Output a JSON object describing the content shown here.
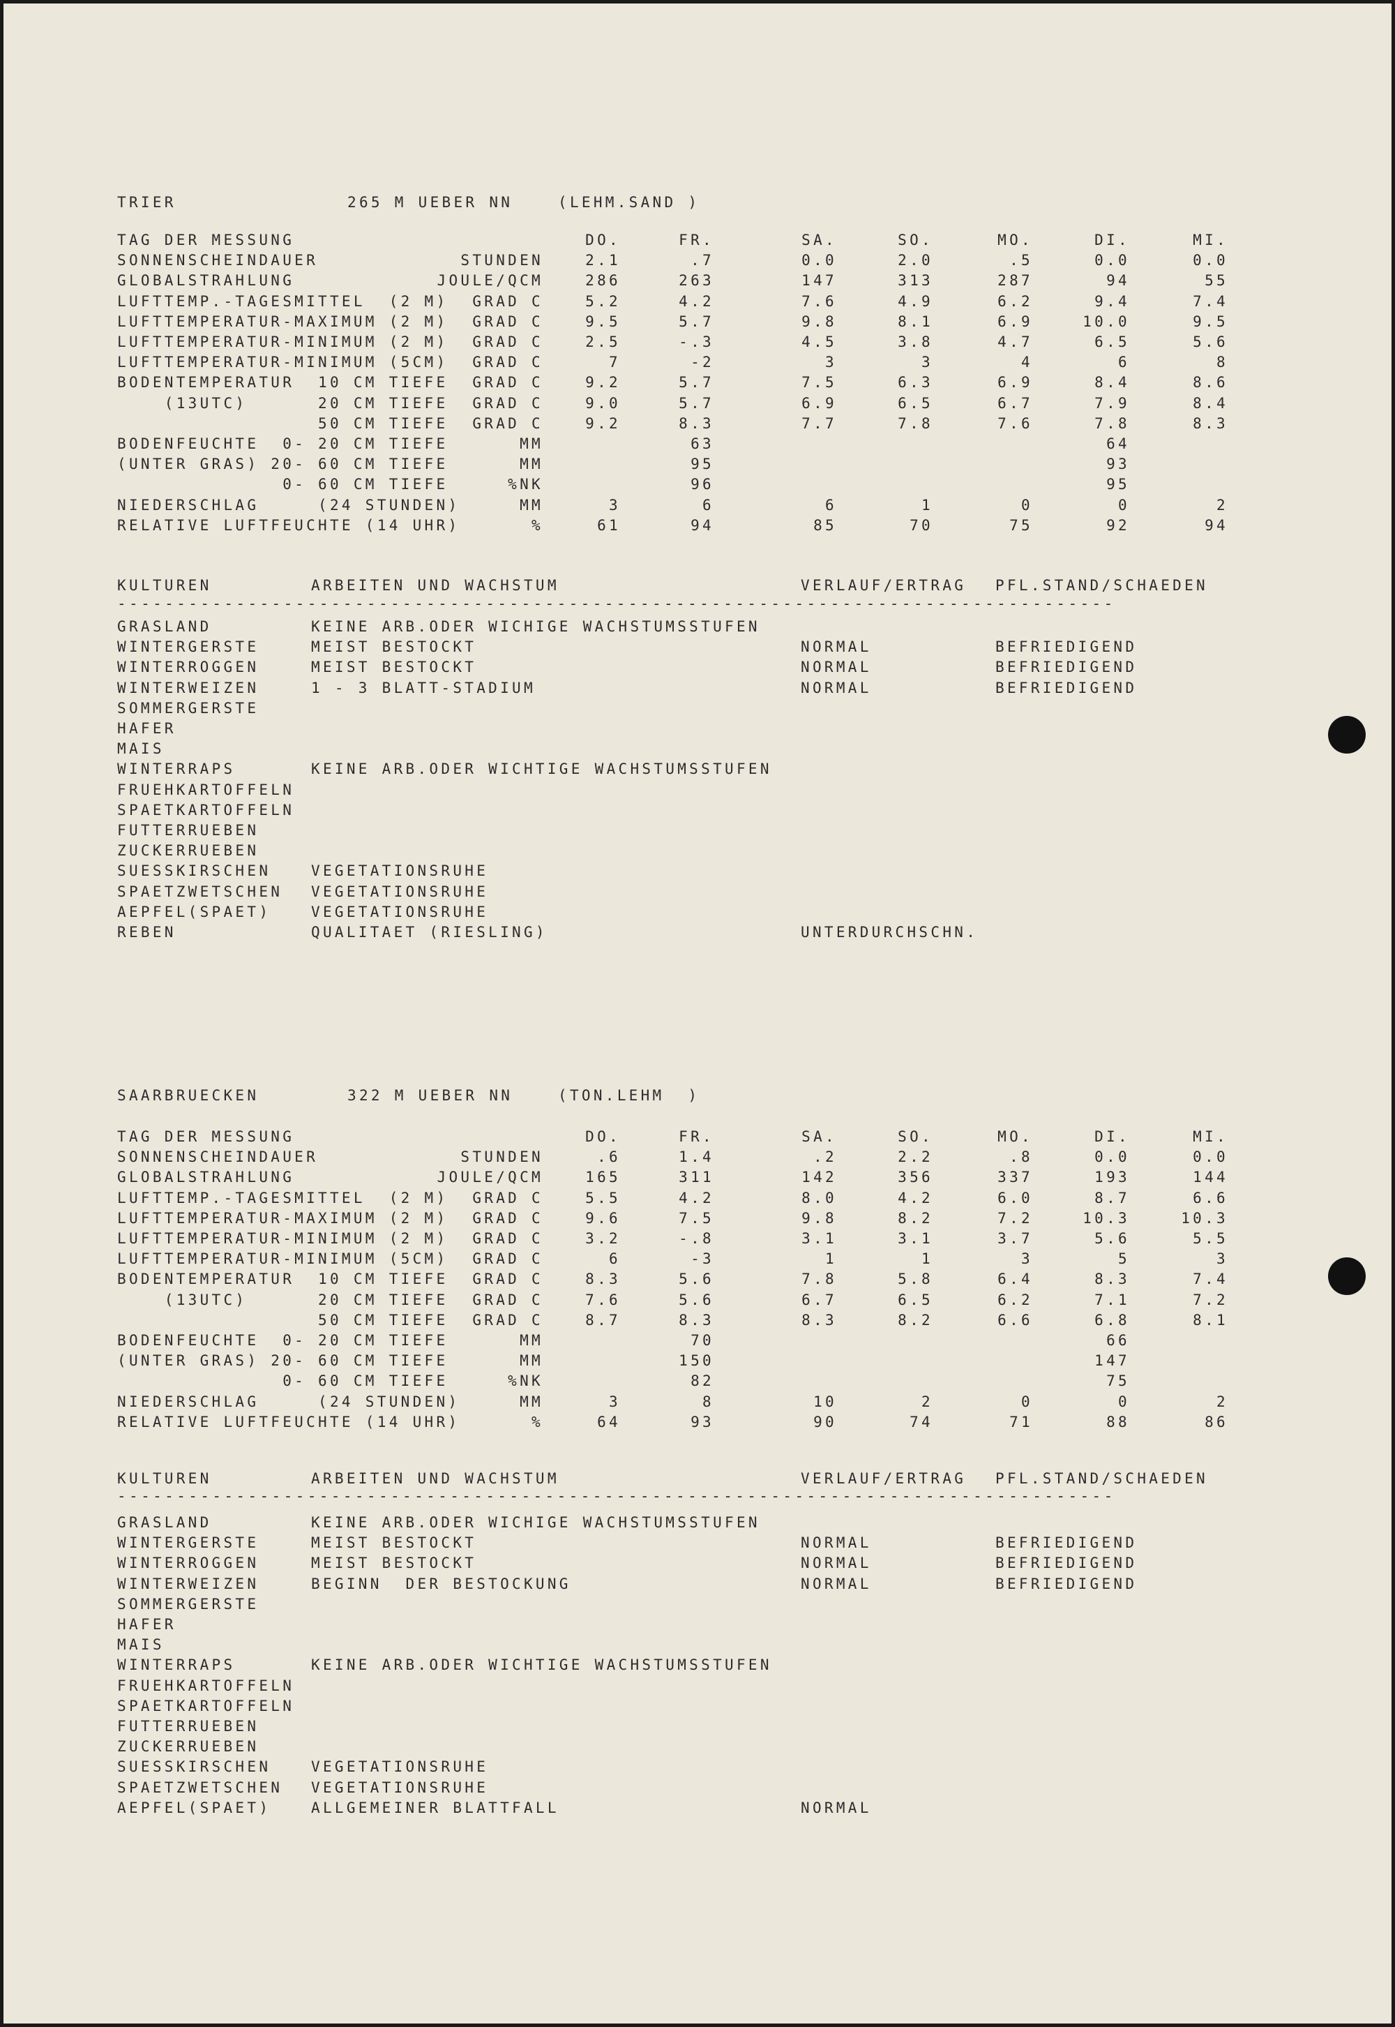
{
  "days": [
    "DO.",
    "FR.",
    "SA.",
    "SO.",
    "MO.",
    "DI.",
    "MI."
  ],
  "day_header_label": "TAG DER MESSUNG",
  "crops_header": {
    "kulturen": "KULTUREN",
    "arbeiten": "ARBEITEN UND WACHSTUM",
    "verlauf": "VERLAUF/ERTRAG",
    "stand": "PFL.STAND/SCHAEDEN"
  },
  "stations": [
    {
      "name": "TRIER",
      "altitude": "265 M UEBER NN",
      "soil": "(LEHM.SAND )",
      "rows": [
        {
          "label": "SONNENSCHEINDAUER",
          "unit": "STUNDEN",
          "values": [
            "2.1",
            ".7",
            "0.0",
            "2.0",
            ".5",
            "0.0",
            "0.0"
          ]
        },
        {
          "label": "GLOBALSTRAHLUNG",
          "unit": "JOULE/QCM",
          "values": [
            "286",
            "263",
            "147",
            "313",
            "287",
            "94",
            "55"
          ]
        },
        {
          "label": "LUFTTEMP.-TAGESMITTEL  (2 M)",
          "unit": "GRAD C",
          "values": [
            "5.2",
            "4.2",
            "7.6",
            "4.9",
            "6.2",
            "9.4",
            "7.4"
          ]
        },
        {
          "label": "LUFTTEMPERATUR-MAXIMUM (2 M)",
          "unit": "GRAD C",
          "values": [
            "9.5",
            "5.7",
            "9.8",
            "8.1",
            "6.9",
            "10.0",
            "9.5"
          ]
        },
        {
          "label": "LUFTTEMPERATUR-MINIMUM (2 M)",
          "unit": "GRAD C",
          "values": [
            "2.5",
            "-.3",
            "4.5",
            "3.8",
            "4.7",
            "6.5",
            "5.6"
          ]
        },
        {
          "label": "LUFTTEMPERATUR-MINIMUM (5CM)",
          "unit": "GRAD C",
          "values": [
            "7",
            "-2",
            "3",
            "3",
            "4",
            "6",
            "8"
          ]
        },
        {
          "label": "BODENTEMPERATUR  10 CM TIEFE",
          "unit": "GRAD C",
          "values": [
            "9.2",
            "5.7",
            "7.5",
            "6.3",
            "6.9",
            "8.4",
            "8.6"
          ]
        },
        {
          "label": "    (13UTC)      20 CM TIEFE",
          "unit": "GRAD C",
          "values": [
            "9.0",
            "5.7",
            "6.9",
            "6.5",
            "6.7",
            "7.9",
            "8.4"
          ]
        },
        {
          "label": "                 50 CM TIEFE",
          "unit": "GRAD C",
          "values": [
            "9.2",
            "8.3",
            "7.7",
            "7.8",
            "7.6",
            "7.8",
            "8.3"
          ]
        },
        {
          "label": "BODENFEUCHTE  0- 20 CM TIEFE",
          "unit": "MM",
          "values": [
            "",
            "63",
            "",
            "",
            "",
            "64",
            ""
          ]
        },
        {
          "label": "(UNTER GRAS) 20- 60 CM TIEFE",
          "unit": "MM",
          "values": [
            "",
            "95",
            "",
            "",
            "",
            "93",
            ""
          ]
        },
        {
          "label": "              0- 60 CM TIEFE",
          "unit": "%NK",
          "values": [
            "",
            "96",
            "",
            "",
            "",
            "95",
            ""
          ]
        },
        {
          "label": "NIEDERSCHLAG     (24 STUNDEN)",
          "unit": "MM",
          "values": [
            "3",
            "6",
            "6",
            "1",
            "0",
            "0",
            "2"
          ]
        },
        {
          "label": "RELATIVE LUFTFEUCHTE (14 UHR)",
          "unit": "%",
          "values": [
            "61",
            "94",
            "85",
            "70",
            "75",
            "92",
            "94"
          ]
        }
      ],
      "crops": [
        {
          "name": "GRASLAND",
          "work": "KEINE ARB.ODER WICHIGE WACHSTUMSSTUFEN",
          "verlauf": "",
          "stand": ""
        },
        {
          "name": "WINTERGERSTE",
          "work": "MEIST BESTOCKT",
          "verlauf": "NORMAL",
          "stand": "BEFRIEDIGEND"
        },
        {
          "name": "WINTERROGGEN",
          "work": "MEIST BESTOCKT",
          "verlauf": "NORMAL",
          "stand": "BEFRIEDIGEND"
        },
        {
          "name": "WINTERWEIZEN",
          "work": "1 - 3 BLATT-STADIUM",
          "verlauf": "NORMAL",
          "stand": "BEFRIEDIGEND"
        },
        {
          "name": "SOMMERGERSTE",
          "work": "",
          "verlauf": "",
          "stand": ""
        },
        {
          "name": "HAFER",
          "work": "",
          "verlauf": "",
          "stand": ""
        },
        {
          "name": "MAIS",
          "work": "",
          "verlauf": "",
          "stand": ""
        },
        {
          "name": "WINTERRAPS",
          "work": "KEINE ARB.ODER WICHTIGE WACHSTUMSSTUFEN",
          "verlauf": "",
          "stand": ""
        },
        {
          "name": "FRUEHKARTOFFELN",
          "work": "",
          "verlauf": "",
          "stand": ""
        },
        {
          "name": "SPAETKARTOFFELN",
          "work": "",
          "verlauf": "",
          "stand": ""
        },
        {
          "name": "FUTTERRUEBEN",
          "work": "",
          "verlauf": "",
          "stand": ""
        },
        {
          "name": "ZUCKERRUEBEN",
          "work": "",
          "verlauf": "",
          "stand": ""
        },
        {
          "name": "SUESSKIRSCHEN",
          "work": "VEGETATIONSRUHE",
          "verlauf": "",
          "stand": ""
        },
        {
          "name": "SPAETZWETSCHEN",
          "work": "VEGETATIONSRUHE",
          "verlauf": "",
          "stand": ""
        },
        {
          "name": "AEPFEL(SPAET)",
          "work": "VEGETATIONSRUHE",
          "verlauf": "",
          "stand": ""
        },
        {
          "name": "REBEN",
          "work": "QUALITAET (RIESLING)",
          "verlauf": "UNTERDURCHSCHN.",
          "stand": ""
        }
      ]
    },
    {
      "name": "SAARBRUECKEN",
      "altitude": "322 M UEBER NN",
      "soil": "(TON.LEHM  )",
      "rows": [
        {
          "label": "SONNENSCHEINDAUER",
          "unit": "STUNDEN",
          "values": [
            ".6",
            "1.4",
            ".2",
            "2.2",
            ".8",
            "0.0",
            "0.0"
          ]
        },
        {
          "label": "GLOBALSTRAHLUNG",
          "unit": "JOULE/QCM",
          "values": [
            "165",
            "311",
            "142",
            "356",
            "337",
            "193",
            "144"
          ]
        },
        {
          "label": "LUFTTEMP.-TAGESMITTEL  (2 M)",
          "unit": "GRAD C",
          "values": [
            "5.5",
            "4.2",
            "8.0",
            "4.2",
            "6.0",
            "8.7",
            "6.6"
          ]
        },
        {
          "label": "LUFTTEMPERATUR-MAXIMUM (2 M)",
          "unit": "GRAD C",
          "values": [
            "9.6",
            "7.5",
            "9.8",
            "8.2",
            "7.2",
            "10.3",
            "10.3"
          ]
        },
        {
          "label": "LUFTTEMPERATUR-MINIMUM (2 M)",
          "unit": "GRAD C",
          "values": [
            "3.2",
            "-.8",
            "3.1",
            "3.1",
            "3.7",
            "5.6",
            "5.5"
          ]
        },
        {
          "label": "LUFTTEMPERATUR-MINIMUM (5CM)",
          "unit": "GRAD C",
          "values": [
            "6",
            "-3",
            "1",
            "1",
            "3",
            "5",
            "3"
          ]
        },
        {
          "label": "BODENTEMPERATUR  10 CM TIEFE",
          "unit": "GRAD C",
          "values": [
            "8.3",
            "5.6",
            "7.8",
            "5.8",
            "6.4",
            "8.3",
            "7.4"
          ]
        },
        {
          "label": "    (13UTC)      20 CM TIEFE",
          "unit": "GRAD C",
          "values": [
            "7.6",
            "5.6",
            "6.7",
            "6.5",
            "6.2",
            "7.1",
            "7.2"
          ]
        },
        {
          "label": "                 50 CM TIEFE",
          "unit": "GRAD C",
          "values": [
            "8.7",
            "8.3",
            "8.3",
            "8.2",
            "6.6",
            "6.8",
            "8.1"
          ]
        },
        {
          "label": "BODENFEUCHTE  0- 20 CM TIEFE",
          "unit": "MM",
          "values": [
            "",
            "70",
            "",
            "",
            "",
            "66",
            ""
          ]
        },
        {
          "label": "(UNTER GRAS) 20- 60 CM TIEFE",
          "unit": "MM",
          "values": [
            "",
            "150",
            "",
            "",
            "",
            "147",
            ""
          ]
        },
        {
          "label": "              0- 60 CM TIEFE",
          "unit": "%NK",
          "values": [
            "",
            "82",
            "",
            "",
            "",
            "75",
            ""
          ]
        },
        {
          "label": "NIEDERSCHLAG     (24 STUNDEN)",
          "unit": "MM",
          "values": [
            "3",
            "8",
            "10",
            "2",
            "0",
            "0",
            "2"
          ]
        },
        {
          "label": "RELATIVE LUFTFEUCHTE (14 UHR)",
          "unit": "%",
          "values": [
            "64",
            "93",
            "90",
            "74",
            "71",
            "88",
            "86"
          ]
        }
      ],
      "crops": [
        {
          "name": "GRASLAND",
          "work": "KEINE ARB.ODER WICHIGE WACHSTUMSSTUFEN",
          "verlauf": "",
          "stand": ""
        },
        {
          "name": "WINTERGERSTE",
          "work": "MEIST BESTOCKT",
          "verlauf": "NORMAL",
          "stand": "BEFRIEDIGEND"
        },
        {
          "name": "WINTERROGGEN",
          "work": "MEIST BESTOCKT",
          "verlauf": "NORMAL",
          "stand": "BEFRIEDIGEND"
        },
        {
          "name": "WINTERWEIZEN",
          "work": "BEGINN  DER BESTOCKUNG",
          "verlauf": "NORMAL",
          "stand": "BEFRIEDIGEND"
        },
        {
          "name": "SOMMERGERSTE",
          "work": "",
          "verlauf": "",
          "stand": ""
        },
        {
          "name": "HAFER",
          "work": "",
          "verlauf": "",
          "stand": ""
        },
        {
          "name": "MAIS",
          "work": "",
          "verlauf": "",
          "stand": ""
        },
        {
          "name": "WINTERRAPS",
          "work": "KEINE ARB.ODER WICHTIGE WACHSTUMSSTUFEN",
          "verlauf": "",
          "stand": ""
        },
        {
          "name": "FRUEHKARTOFFELN",
          "work": "",
          "verlauf": "",
          "stand": ""
        },
        {
          "name": "SPAETKARTOFFELN",
          "work": "",
          "verlauf": "",
          "stand": ""
        },
        {
          "name": "FUTTERRUEBEN",
          "work": "",
          "verlauf": "",
          "stand": ""
        },
        {
          "name": "ZUCKERRUEBEN",
          "work": "",
          "verlauf": "",
          "stand": ""
        },
        {
          "name": "SUESSKIRSCHEN",
          "work": "VEGETATIONSRUHE",
          "verlauf": "",
          "stand": ""
        },
        {
          "name": "SPAETZWETSCHEN",
          "work": "VEGETATIONSRUHE",
          "verlauf": "",
          "stand": ""
        },
        {
          "name": "AEPFEL(SPAET)",
          "work": "ALLGEMEINER BLATTFALL",
          "verlauf": "NORMAL",
          "stand": ""
        }
      ]
    }
  ]
}
